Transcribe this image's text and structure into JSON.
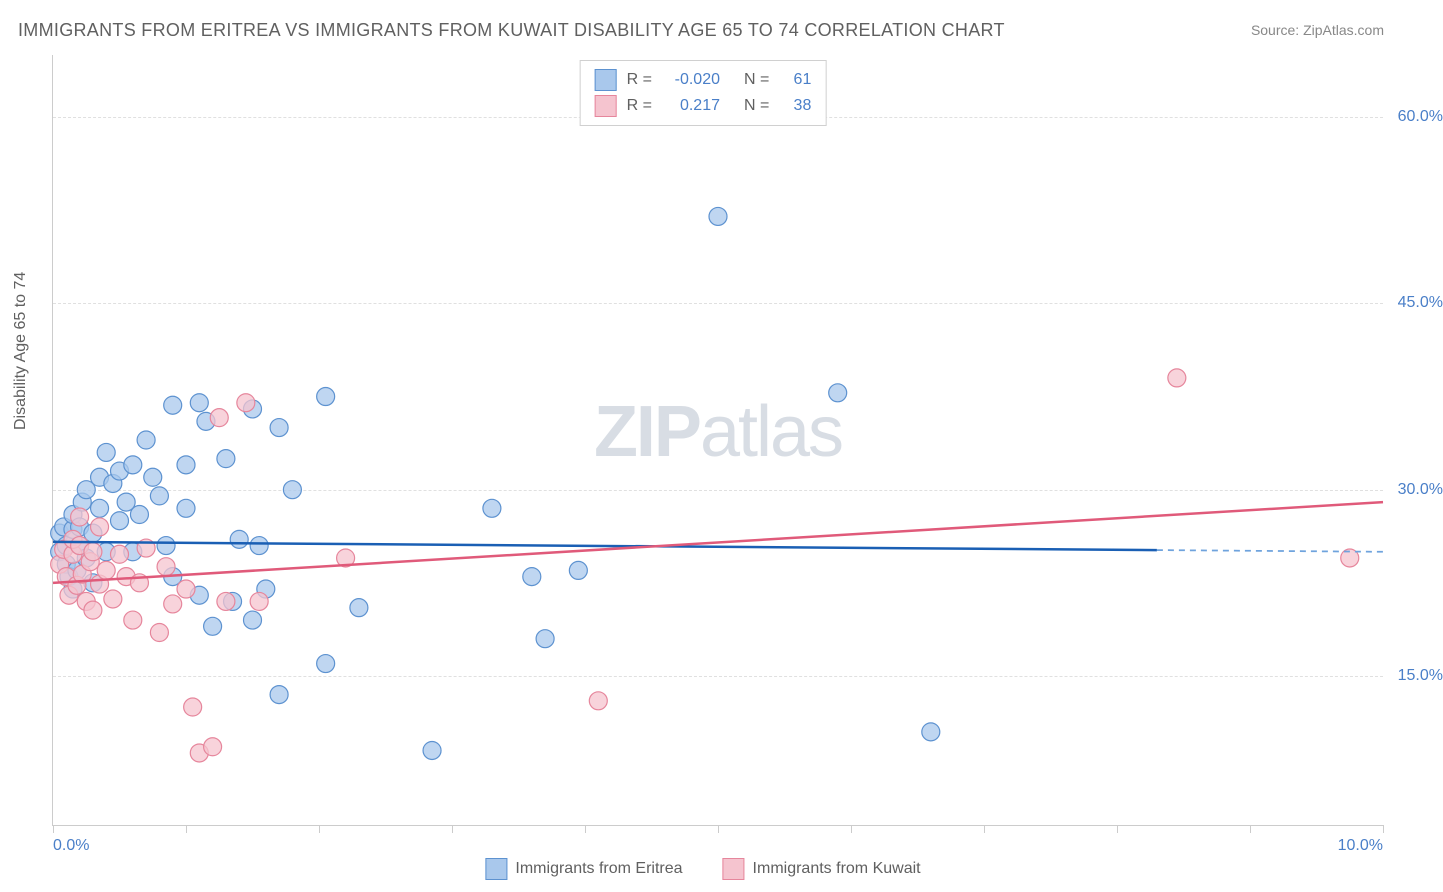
{
  "title": "IMMIGRANTS FROM ERITREA VS IMMIGRANTS FROM KUWAIT DISABILITY AGE 65 TO 74 CORRELATION CHART",
  "source": "Source: ZipAtlas.com",
  "ylabel": "Disability Age 65 to 74",
  "watermark_zip": "ZIP",
  "watermark_atlas": "atlas",
  "chart": {
    "type": "scatter",
    "xlim": [
      0,
      10
    ],
    "ylim": [
      3,
      65
    ],
    "background_color": "#ffffff",
    "grid_color": "#e0e0e0",
    "axis_color": "#cccccc",
    "tick_label_color": "#4a7fc8",
    "text_color": "#606060",
    "ytick_values": [
      15,
      30,
      45,
      60
    ],
    "ytick_labels": [
      "15.0%",
      "30.0%",
      "45.0%",
      "60.0%"
    ],
    "xtick_values": [
      0,
      1,
      2,
      3,
      4,
      5,
      6,
      7,
      8,
      9,
      10
    ],
    "xtick_labels_shown": {
      "0": "0.0%",
      "10": "10.0%"
    },
    "marker_radius": 9,
    "marker_stroke_width": 1.2,
    "series": [
      {
        "name": "Immigrants from Eritrea",
        "fill": "#a9c8ec",
        "stroke": "#5d92d0",
        "R": "-0.020",
        "N": "61",
        "trend": {
          "y_at_x0": 25.8,
          "y_at_x10": 25.0,
          "solid_until_x": 8.3,
          "color": "#1a5fb4",
          "width": 2.5,
          "dash_color": "#6fa3dd"
        },
        "points": [
          [
            0.05,
            25
          ],
          [
            0.05,
            26.5
          ],
          [
            0.08,
            27
          ],
          [
            0.1,
            24
          ],
          [
            0.1,
            25.5
          ],
          [
            0.12,
            23
          ],
          [
            0.15,
            26.8
          ],
          [
            0.15,
            28
          ],
          [
            0.15,
            22
          ],
          [
            0.18,
            23.5
          ],
          [
            0.2,
            27
          ],
          [
            0.2,
            25.5
          ],
          [
            0.22,
            29
          ],
          [
            0.25,
            30
          ],
          [
            0.25,
            24.5
          ],
          [
            0.3,
            26.5
          ],
          [
            0.3,
            22.5
          ],
          [
            0.35,
            31
          ],
          [
            0.35,
            28.5
          ],
          [
            0.4,
            25
          ],
          [
            0.4,
            33
          ],
          [
            0.45,
            30.5
          ],
          [
            0.5,
            31.5
          ],
          [
            0.5,
            27.5
          ],
          [
            0.55,
            29
          ],
          [
            0.6,
            32
          ],
          [
            0.6,
            25
          ],
          [
            0.65,
            28
          ],
          [
            0.7,
            34
          ],
          [
            0.75,
            31
          ],
          [
            0.8,
            29.5
          ],
          [
            0.85,
            25.5
          ],
          [
            0.9,
            36.8
          ],
          [
            0.9,
            23
          ],
          [
            1.0,
            32
          ],
          [
            1.0,
            28.5
          ],
          [
            1.1,
            37
          ],
          [
            1.1,
            21.5
          ],
          [
            1.15,
            35.5
          ],
          [
            1.2,
            19
          ],
          [
            1.3,
            32.5
          ],
          [
            1.35,
            21
          ],
          [
            1.4,
            26
          ],
          [
            1.5,
            36.5
          ],
          [
            1.5,
            19.5
          ],
          [
            1.55,
            25.5
          ],
          [
            1.6,
            22
          ],
          [
            1.7,
            35
          ],
          [
            1.7,
            13.5
          ],
          [
            1.8,
            30
          ],
          [
            2.05,
            37.5
          ],
          [
            2.05,
            16
          ],
          [
            2.3,
            20.5
          ],
          [
            2.85,
            9
          ],
          [
            3.3,
            28.5
          ],
          [
            3.6,
            23
          ],
          [
            3.7,
            18
          ],
          [
            3.95,
            23.5
          ],
          [
            5.0,
            52
          ],
          [
            5.9,
            37.8
          ],
          [
            6.6,
            10.5
          ]
        ]
      },
      {
        "name": "Immigrants from Kuwait",
        "fill": "#f5c4cf",
        "stroke": "#e6869c",
        "R": "0.217",
        "N": "38",
        "trend": {
          "y_at_x0": 22.5,
          "y_at_x10": 29.0,
          "solid_until_x": 10,
          "color": "#e05a7a",
          "width": 2.5
        },
        "points": [
          [
            0.05,
            24
          ],
          [
            0.08,
            25.2
          ],
          [
            0.1,
            23
          ],
          [
            0.12,
            21.5
          ],
          [
            0.15,
            24.8
          ],
          [
            0.15,
            26
          ],
          [
            0.18,
            22.3
          ],
          [
            0.2,
            25.5
          ],
          [
            0.2,
            27.8
          ],
          [
            0.22,
            23.2
          ],
          [
            0.25,
            21
          ],
          [
            0.28,
            24.2
          ],
          [
            0.3,
            20.3
          ],
          [
            0.3,
            25
          ],
          [
            0.35,
            22.4
          ],
          [
            0.35,
            27
          ],
          [
            0.4,
            23.5
          ],
          [
            0.45,
            21.2
          ],
          [
            0.5,
            24.8
          ],
          [
            0.55,
            23
          ],
          [
            0.6,
            19.5
          ],
          [
            0.65,
            22.5
          ],
          [
            0.7,
            25.3
          ],
          [
            0.8,
            18.5
          ],
          [
            0.85,
            23.8
          ],
          [
            0.9,
            20.8
          ],
          [
            1.0,
            22
          ],
          [
            1.05,
            12.5
          ],
          [
            1.1,
            8.8
          ],
          [
            1.2,
            9.3
          ],
          [
            1.25,
            35.8
          ],
          [
            1.3,
            21
          ],
          [
            1.45,
            37
          ],
          [
            1.55,
            21
          ],
          [
            2.2,
            24.5
          ],
          [
            4.1,
            13
          ],
          [
            8.45,
            39
          ],
          [
            9.75,
            24.5
          ]
        ]
      }
    ]
  },
  "legend_top": {
    "R_label": "R =",
    "N_label": "N ="
  },
  "legend_bottom": [
    {
      "label": "Immigrants from Eritrea",
      "fill": "#a9c8ec",
      "stroke": "#5d92d0"
    },
    {
      "label": "Immigrants from Kuwait",
      "fill": "#f5c4cf",
      "stroke": "#e6869c"
    }
  ]
}
